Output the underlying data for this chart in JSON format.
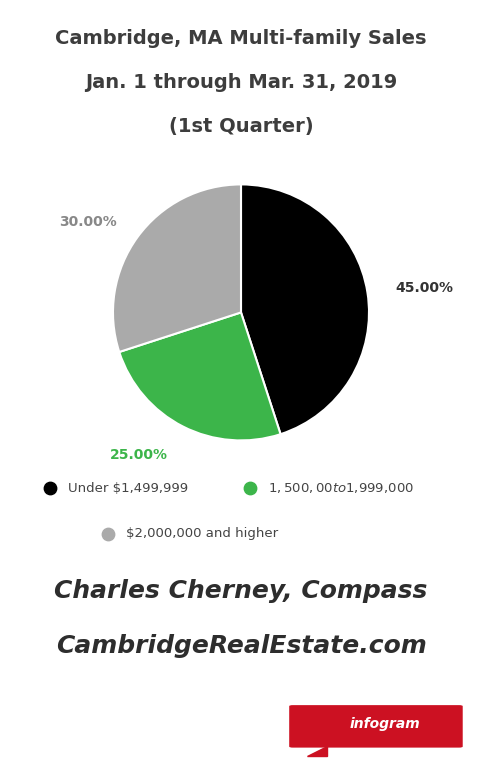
{
  "title_line1": "Cambridge, MA Multi-family Sales",
  "title_line2": "Jan. 1 through Mar. 31, 2019",
  "title_line3": "(1st Quarter)",
  "slices": [
    45.0,
    25.0,
    30.0
  ],
  "slice_colors": [
    "#000000",
    "#3cb54a",
    "#aaaaaa"
  ],
  "slice_labels": [
    "45.00%",
    "25.00%",
    "30.00%"
  ],
  "slice_label_colors": [
    "#333333",
    "#3cb54a",
    "#888888"
  ],
  "legend_labels": [
    "Under $1,499,999",
    "$1,500,00 to $1,999,000",
    "$2,000,000 and higher"
  ],
  "legend_colors": [
    "#000000",
    "#3cb54a",
    "#aaaaaa"
  ],
  "footer_line1": "Charles Cherney, Compass",
  "footer_line2": "CambridgeRealEstate.com",
  "bg_color": "#ffffff",
  "title_color": "#3d3d3d",
  "footer_color": "#2d2d2d",
  "legend_text_color": "#444444",
  "startangle": 90,
  "infogram_text": "infogram",
  "infogram_bg": "#cc1122"
}
